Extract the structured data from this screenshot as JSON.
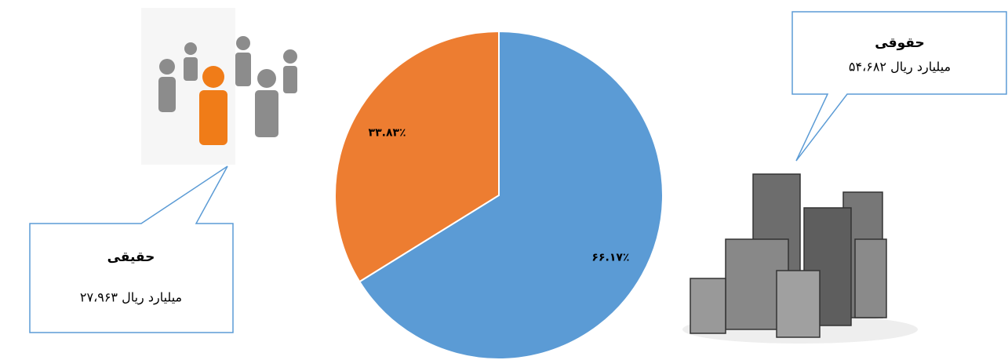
{
  "chart_data": {
    "type": "pie",
    "categories": [
      "حقوقی",
      "حقیقی"
    ],
    "values": [
      66.17,
      33.83
    ],
    "value_labels": [
      "۶۶.۱۷٪",
      "۳۳.۸۳٪"
    ],
    "colors": [
      "#5b9bd5",
      "#ed7d31"
    ],
    "annotations": [
      "۵۴،۶۸۲ میلیارد ریال",
      "۲۷،۹۶۳ میلیارد ریال"
    ]
  }
}
